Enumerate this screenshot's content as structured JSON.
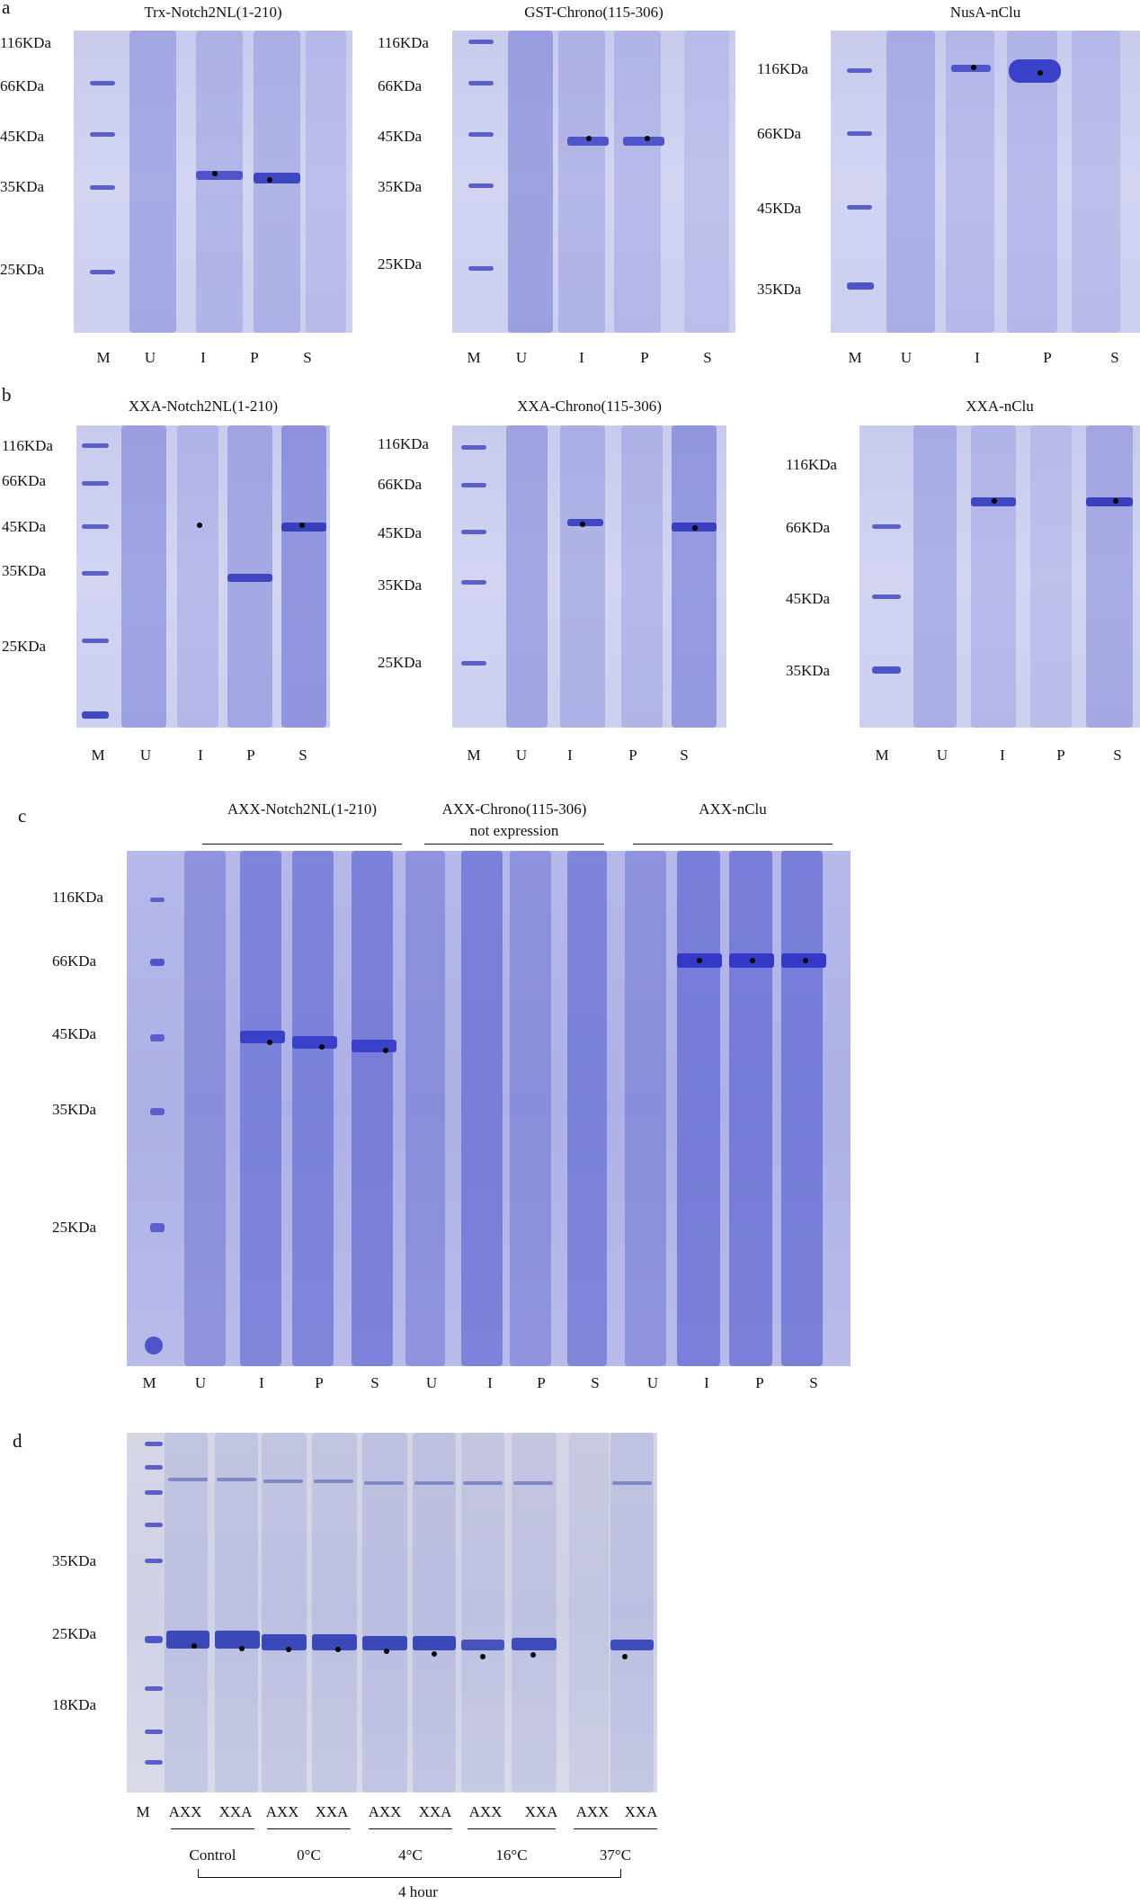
{
  "panels": {
    "a": {
      "letter": "a",
      "gels": [
        {
          "title": "Trx-Notch2NL(1-210)",
          "markers": [
            "116KDa",
            "66KDa",
            "45KDa",
            "35KDa",
            "25KDa"
          ],
          "lanes": [
            "M",
            "U",
            "I",
            "P",
            "S"
          ]
        },
        {
          "title": "GST-Chrono(115-306)",
          "markers": [
            "116KDa",
            "66KDa",
            "45KDa",
            "35KDa",
            "25KDa"
          ],
          "lanes": [
            "M",
            "U",
            "I",
            "P",
            "S"
          ]
        },
        {
          "title": "NusA-nClu",
          "markers": [
            "116KDa",
            "66KDa",
            "45KDa",
            "35KDa"
          ],
          "lanes": [
            "M",
            "U",
            "I",
            "P",
            "S"
          ]
        }
      ]
    },
    "b": {
      "letter": "b",
      "gels": [
        {
          "title": "XXA-Notch2NL(1-210)",
          "markers": [
            "116KDa",
            "66KDa",
            "45KDa",
            "35KDa",
            "25KDa"
          ],
          "lanes": [
            "M",
            "U",
            "I",
            "P",
            "S"
          ]
        },
        {
          "title": "XXA-Chrono(115-306)",
          "markers": [
            "116KDa",
            "66KDa",
            "45KDa",
            "35KDa",
            "25KDa"
          ],
          "lanes": [
            "M",
            "U",
            "I",
            "P",
            "S"
          ]
        },
        {
          "title": "XXA-nClu",
          "markers": [
            "116KDa",
            "66KDa",
            "45KDa",
            "35KDa"
          ],
          "lanes": [
            "M",
            "U",
            "I",
            "P",
            "S"
          ]
        }
      ]
    },
    "c": {
      "letter": "c",
      "groups": [
        {
          "title": "AXX-Notch2NL(1-210)",
          "subtitle": ""
        },
        {
          "title": "AXX-Chrono(115-306)",
          "subtitle": "not expression"
        },
        {
          "title": "AXX-nClu",
          "subtitle": ""
        }
      ],
      "markers": [
        "116KDa",
        "66KDa",
        "45KDa",
        "35KDa",
        "25KDa"
      ],
      "lanes": [
        "M",
        "U",
        "I",
        "P",
        "S",
        "U",
        "I",
        "P",
        "S",
        "U",
        "I",
        "P",
        "S"
      ]
    },
    "d": {
      "letter": "d",
      "markers": [
        "35KDa",
        "25KDa",
        "18KDa"
      ],
      "lanes": [
        "M",
        "AXX",
        "XXA",
        "AXX",
        "XXA",
        "AXX",
        "XXA",
        "AXX",
        "XXA",
        "AXX",
        "XXA"
      ],
      "conditions": [
        "Control",
        "0°C",
        "4°C",
        "16°C",
        "37°C"
      ],
      "duration": "4 hour"
    }
  },
  "colors": {
    "stain": "#4d55c9",
    "background_gel": "#cfd1f0",
    "dot": "#000000"
  }
}
